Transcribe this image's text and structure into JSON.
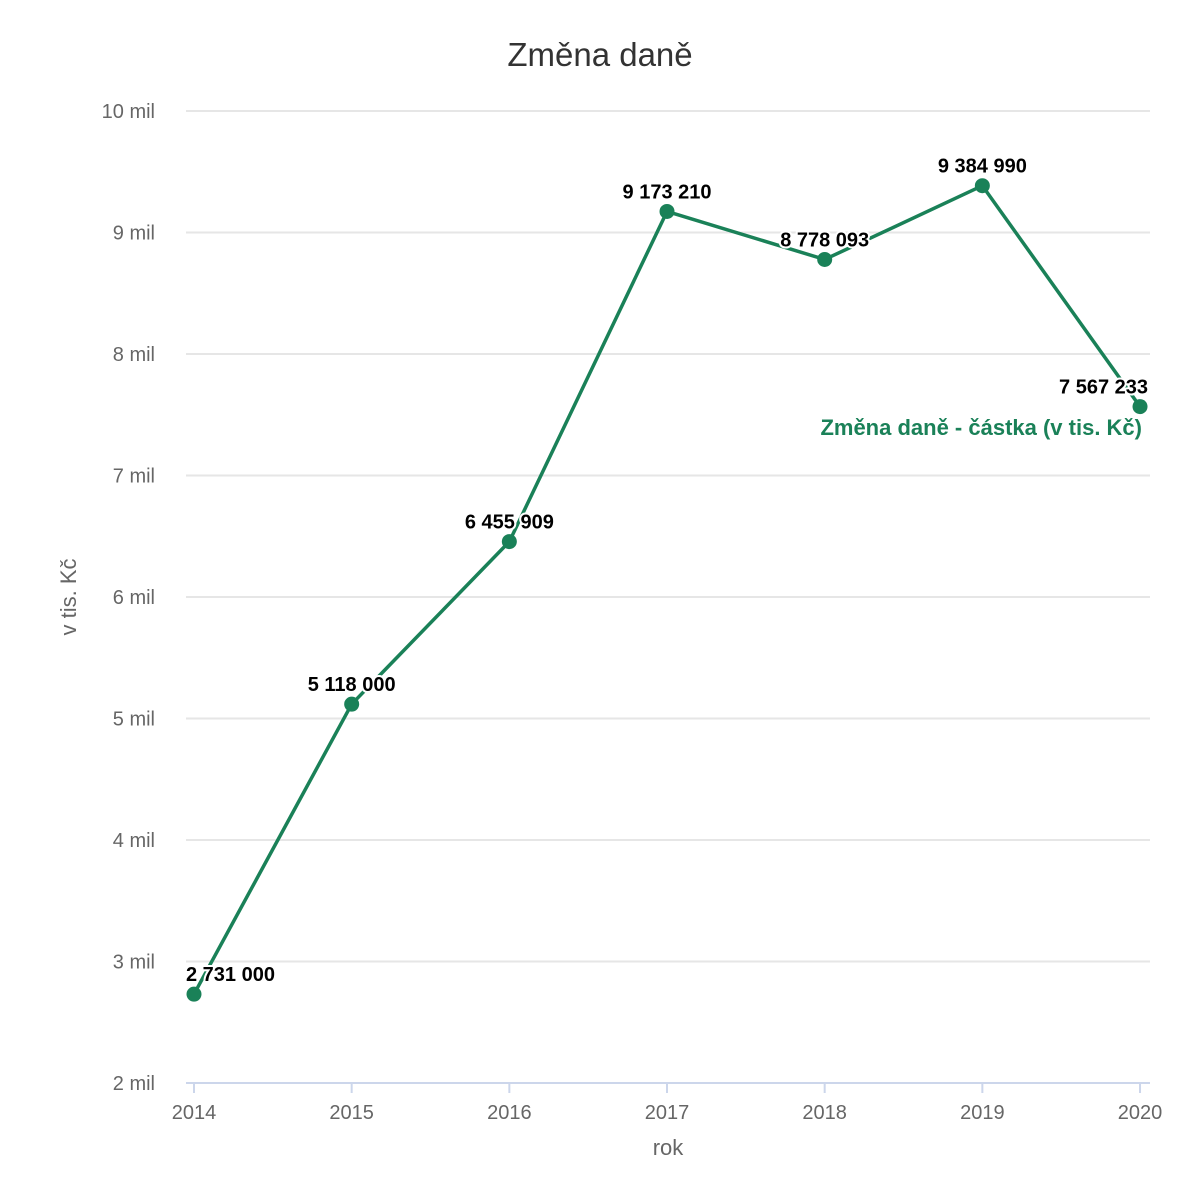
{
  "chart_data": {
    "type": "line",
    "title": "Změna daně",
    "xlabel": "rok",
    "ylabel": "v tis. Kč",
    "categories": [
      "2014",
      "2015",
      "2016",
      "2017",
      "2018",
      "2019",
      "2020"
    ],
    "series": [
      {
        "name": "Změna daně - částka (v tis. Kč)",
        "values": [
          2731000,
          5118000,
          6455909,
          9173210,
          8778093,
          9384990,
          7567233
        ],
        "labels": [
          "2 731 000",
          "5 118 000",
          "6 455 909",
          "9 173 210",
          "8 778 093",
          "9 384 990",
          "7 567 233"
        ],
        "color": "#1a8158"
      }
    ],
    "ylim": [
      2000000,
      10000000
    ],
    "y_ticks": [
      2000000,
      3000000,
      4000000,
      5000000,
      6000000,
      7000000,
      8000000,
      9000000,
      10000000
    ],
    "y_tick_labels": [
      "2 mil",
      "3 mil",
      "4 mil",
      "5 mil",
      "6 mil",
      "7 mil",
      "8 mil",
      "9 mil",
      "10 mil"
    ],
    "grid": true,
    "legend": "series label placed at end of line"
  },
  "colors": {
    "series": "#1a8158",
    "grid": "#e6e6e6",
    "axis_line": "#ccd6eb",
    "text": "#666666",
    "title": "#333333"
  }
}
